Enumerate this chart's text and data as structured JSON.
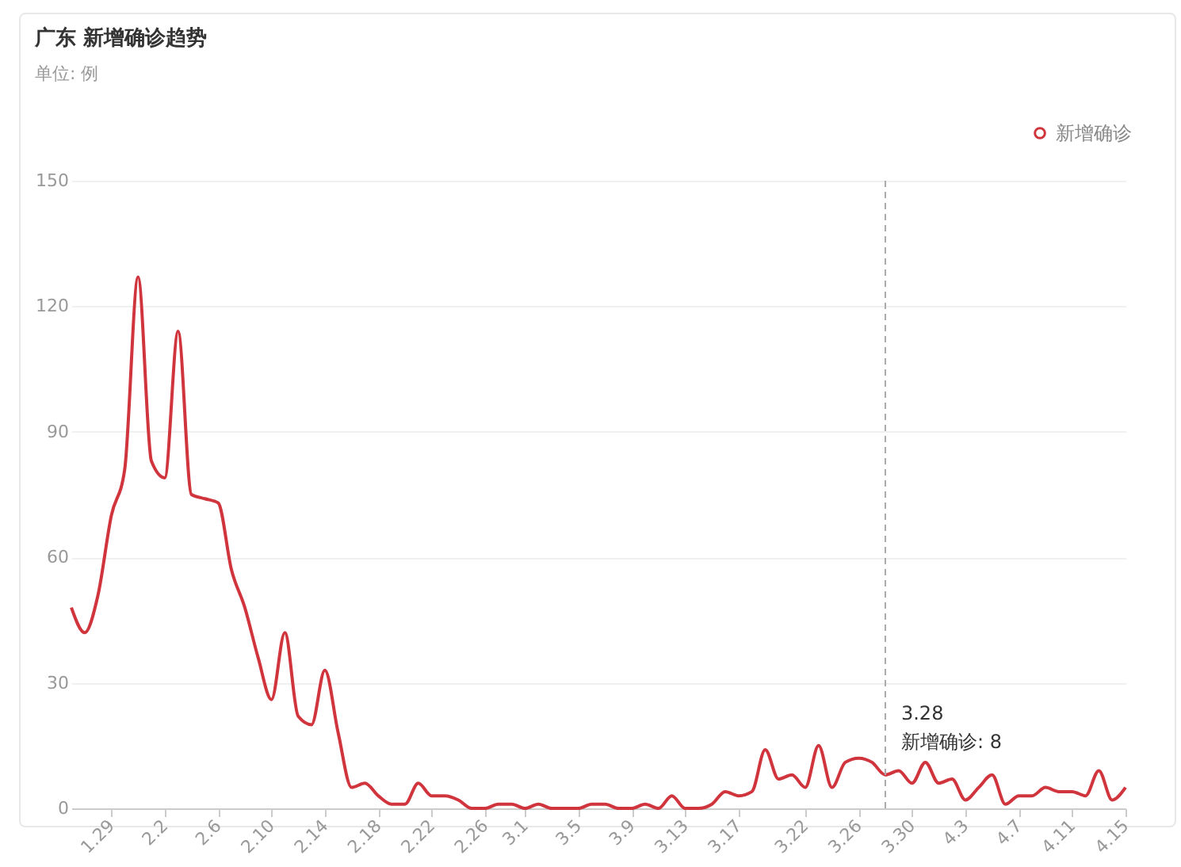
{
  "chart_data": {
    "type": "line",
    "title": "广东 新增确诊趋势",
    "subtitle": "单位: 例",
    "x": [
      "--01-26",
      "--01-27",
      "--01-28",
      "--01-29",
      "--01-30",
      "--01-31",
      "--02-01",
      "--02-02",
      "--02-03",
      "--02-04",
      "--02-05",
      "--02-06",
      "--02-07",
      "--02-08",
      "--02-09",
      "--02-10",
      "--02-11",
      "--02-12",
      "--02-13",
      "--02-14",
      "--02-15",
      "--02-16",
      "--02-17",
      "--02-18",
      "--02-19",
      "--02-20",
      "--02-21",
      "--02-22",
      "--02-23",
      "--02-24",
      "--02-25",
      "--02-26",
      "--02-27",
      "--02-28",
      "--03-01",
      "--03-02",
      "--03-03",
      "--03-04",
      "--03-05",
      "--03-06",
      "--03-07",
      "--03-08",
      "--03-09",
      "--03-10",
      "--03-11",
      "--03-12",
      "--03-13",
      "--03-14",
      "--03-15",
      "--03-16",
      "--03-17",
      "--03-18",
      "--03-19",
      "--03-20",
      "--03-21",
      "--03-22",
      "--03-23",
      "--03-24",
      "--03-25",
      "--03-26",
      "--03-27",
      "--03-28",
      "--03-29",
      "--03-30",
      "--03-31",
      "--04-01",
      "--04-02",
      "--04-03",
      "--04-04",
      "--04-05",
      "--04-06",
      "--04-07",
      "--04-08",
      "--04-09",
      "--04-10",
      "--04-11",
      "--04-12",
      "--04-13",
      "--04-14",
      "--04-15"
    ],
    "series": [
      {
        "name": "新增确诊",
        "color": "#d0343c",
        "values": [
          48,
          42,
          51,
          70,
          81,
          127,
          83,
          79,
          114,
          75,
          74,
          73,
          57,
          48,
          36,
          26,
          42,
          22,
          20,
          33,
          18,
          5,
          6,
          3,
          1,
          1,
          6,
          3,
          3,
          2,
          0,
          0,
          1,
          1,
          0,
          1,
          0,
          0,
          0,
          1,
          1,
          0,
          0,
          1,
          0,
          3,
          0,
          0,
          1,
          4,
          3,
          4,
          14,
          7,
          8,
          5,
          15,
          5,
          11,
          12,
          11,
          8,
          9,
          6,
          11,
          6,
          7,
          2,
          5,
          8,
          1,
          3,
          3,
          5,
          4,
          4,
          3,
          9,
          2,
          5
        ]
      }
    ],
    "xlim": [
      "--01-26",
      "--04-15"
    ],
    "xticks": [
      {
        "value": "--01-29",
        "label": "1.29"
      },
      {
        "value": "--02-02",
        "label": "2.2"
      },
      {
        "value": "--02-06",
        "label": "2.6"
      },
      {
        "value": "--02-10",
        "label": "2.10"
      },
      {
        "value": "--02-14",
        "label": "2.14"
      },
      {
        "value": "--02-18",
        "label": "2.18"
      },
      {
        "value": "--02-22",
        "label": "2.22"
      },
      {
        "value": "--02-26",
        "label": "2.26"
      },
      {
        "value": "--03-01",
        "label": "3.1"
      },
      {
        "value": "--03-05",
        "label": "3.5"
      },
      {
        "value": "--03-09",
        "label": "3.9"
      },
      {
        "value": "--03-13",
        "label": "3.13"
      },
      {
        "value": "--03-17",
        "label": "3.17"
      },
      {
        "value": "--03-22",
        "label": "3.22"
      },
      {
        "value": "--03-26",
        "label": "3.26"
      },
      {
        "value": "--03-30",
        "label": "3.30"
      },
      {
        "value": "--04-03",
        "label": "4.3"
      },
      {
        "value": "--04-07",
        "label": "4.7"
      },
      {
        "value": "--04-11",
        "label": "4.11"
      },
      {
        "value": "--04-15",
        "label": "4.15"
      }
    ],
    "ylim": [
      0,
      150
    ],
    "yticks": [
      0,
      30,
      60,
      90,
      120,
      150
    ],
    "grid": "y",
    "legend": "top right",
    "marker": "none",
    "line_style": "solid",
    "ref_lines": [
      {
        "axis": "x",
        "value": "--03-28",
        "color": "#aaaaaa",
        "line_style": "dashed"
      }
    ],
    "annotations": [
      {
        "text": "3.28\n新增确诊: 8",
        "x": "--03-28",
        "y": 8
      }
    ]
  }
}
